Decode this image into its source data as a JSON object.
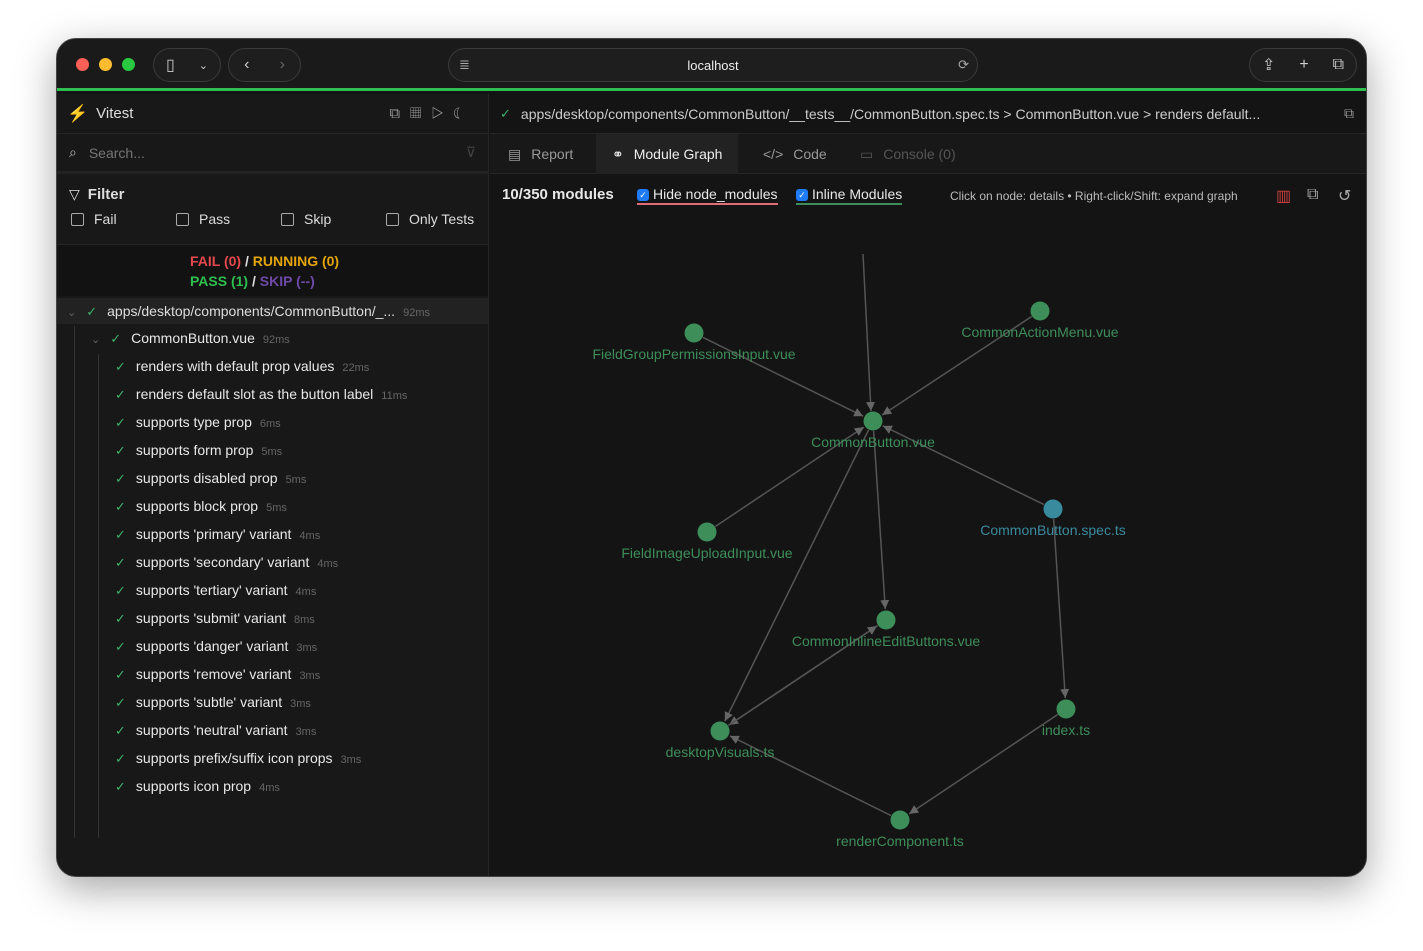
{
  "browser": {
    "url": "localhost"
  },
  "sidebar": {
    "app_name": "Vitest",
    "search_placeholder": "Search...",
    "filter_label": "Filter",
    "filters": [
      "Fail",
      "Pass",
      "Skip",
      "Only Tests"
    ],
    "summary": {
      "fail": "FAIL (0)",
      "running": "RUNNING (0)",
      "pass": "PASS (1)",
      "skip": "SKIP (--)",
      "sep": "/"
    },
    "file": {
      "name": "apps/desktop/components/CommonButton/_...",
      "time": "92ms"
    },
    "suite": {
      "name": "CommonButton.vue",
      "time": "92ms"
    },
    "tests": [
      {
        "name": "renders with default prop values",
        "time": "22ms"
      },
      {
        "name": "renders default slot as the button label",
        "time": "11ms"
      },
      {
        "name": "supports type prop",
        "time": "6ms"
      },
      {
        "name": "supports form prop",
        "time": "5ms"
      },
      {
        "name": "supports disabled prop",
        "time": "5ms"
      },
      {
        "name": "supports block prop",
        "time": "5ms"
      },
      {
        "name": "supports 'primary' variant",
        "time": "4ms"
      },
      {
        "name": "supports 'secondary' variant",
        "time": "4ms"
      },
      {
        "name": "supports 'tertiary' variant",
        "time": "4ms"
      },
      {
        "name": "supports 'submit' variant",
        "time": "8ms"
      },
      {
        "name": "supports 'danger' variant",
        "time": "3ms"
      },
      {
        "name": "supports 'remove' variant",
        "time": "3ms"
      },
      {
        "name": "supports 'subtle' variant",
        "time": "3ms"
      },
      {
        "name": "supports 'neutral' variant",
        "time": "3ms"
      },
      {
        "name": "supports prefix/suffix icon props",
        "time": "3ms"
      },
      {
        "name": "supports icon prop",
        "time": "4ms"
      }
    ]
  },
  "main": {
    "breadcrumb": "apps/desktop/components/CommonButton/__tests__/CommonButton.spec.ts > CommonButton.vue > renders default...",
    "tabs": [
      {
        "label": "Report"
      },
      {
        "label": "Module Graph"
      },
      {
        "label": "Code"
      },
      {
        "label": "Console (0)"
      }
    ],
    "graph_toolbar": {
      "count": "10/350 modules",
      "hide_node_modules": "Hide node_modules",
      "inline_modules": "Inline Modules",
      "hint": "Click on node: details • Right-click/Shift: expand graph"
    },
    "graph": {
      "nodes": [
        "FieldGroupPermissionsInput.vue",
        "CommonActionMenu.vue",
        "CommonButton.vue",
        "FieldImageUploadInput.vue",
        "CommonButton.spec.ts",
        "CommonInlineEditButtons.vue",
        "desktopVisuals.ts",
        "index.ts",
        "renderComponent.ts"
      ],
      "node_color": "#3e8e5a",
      "test_node_color": "#3a8a9e"
    }
  }
}
